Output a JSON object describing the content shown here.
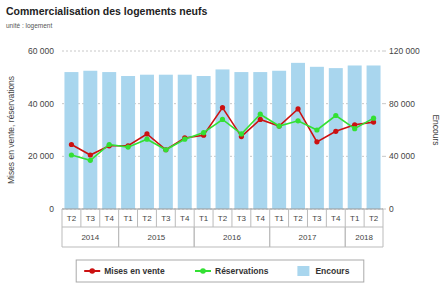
{
  "chart_data": {
    "type": "bar",
    "title": "Commercialisation des logements neufs",
    "subtitle": "unité : logement",
    "y_label": "Mises en vente, réservations",
    "y2_label": "Encours",
    "categories": [
      "T2",
      "T3",
      "T4",
      "T1",
      "T2",
      "T3",
      "T4",
      "T1",
      "T2",
      "T3",
      "T4",
      "T1",
      "T2",
      "T3",
      "T4",
      "T1",
      "T2"
    ],
    "year_groups": [
      {
        "label": "2014",
        "count": 3
      },
      {
        "label": "2015",
        "count": 4
      },
      {
        "label": "2016",
        "count": 4
      },
      {
        "label": "2017",
        "count": 4
      },
      {
        "label": "2018",
        "count": 2
      }
    ],
    "ylim": [
      0,
      60000
    ],
    "yticks": [
      0,
      {
        "value": 20000,
        "label": "20 000"
      },
      {
        "value": 40000,
        "label": "40 000"
      },
      {
        "value": 60000,
        "label": "60 000"
      }
    ],
    "y2lim": [
      0,
      120000
    ],
    "y2ticks": [
      0,
      {
        "value": 40000,
        "label": "40 000"
      },
      {
        "value": 80000,
        "label": "80 000"
      },
      {
        "value": 120000,
        "label": "120 000"
      }
    ],
    "grid": true,
    "legend": "bottom",
    "series": [
      {
        "name": "Mises en vente",
        "type": "line",
        "marker": "circle",
        "color": "#cc1111",
        "values": [
          24500,
          20500,
          24000,
          24000,
          28500,
          22500,
          27000,
          28000,
          38500,
          27500,
          34000,
          31500,
          38000,
          25500,
          29500,
          32000,
          33000
        ]
      },
      {
        "name": "Réservations",
        "type": "line",
        "marker": "circle",
        "color": "#33e033",
        "values": [
          20500,
          18500,
          24500,
          23500,
          26500,
          22500,
          26500,
          29000,
          34000,
          28500,
          36000,
          31500,
          33500,
          30000,
          35500,
          30500,
          34500
        ]
      },
      {
        "name": "Encours",
        "type": "bar",
        "axis": "y2",
        "color": "#a9d6ee",
        "values": [
          104000,
          105000,
          104000,
          101000,
          102000,
          102000,
          102000,
          101000,
          106000,
          104000,
          104000,
          105000,
          111000,
          108000,
          107000,
          109000,
          109000
        ]
      }
    ]
  }
}
